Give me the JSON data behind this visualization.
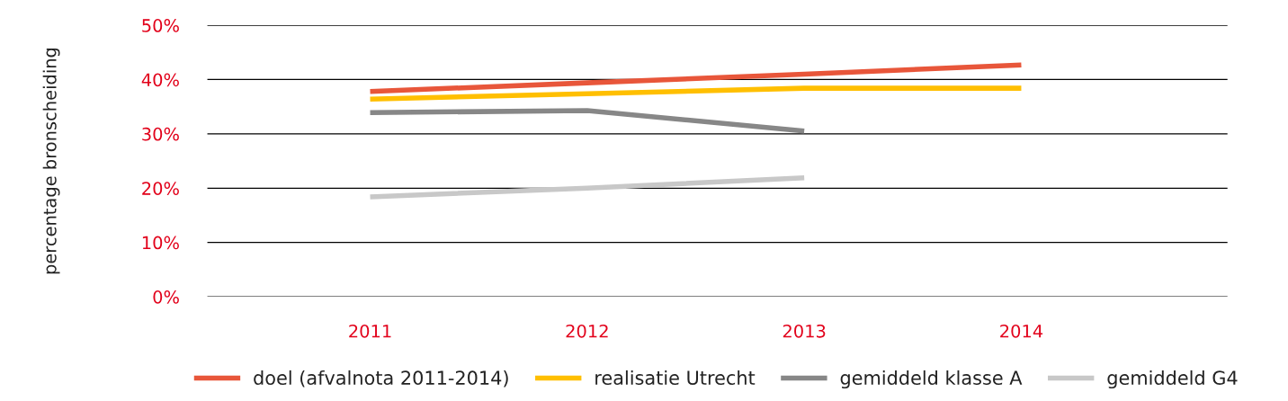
{
  "chart_data": {
    "type": "line",
    "ylabel": "percentage bronscheiding",
    "categories": [
      "2011",
      "2012",
      "2013",
      "2014"
    ],
    "series": [
      {
        "name": "doel (afvalnota 2011-2014)",
        "color": "#e8563a",
        "values": [
          37.8,
          39.4,
          41.0,
          42.7
        ]
      },
      {
        "name": "realisatie Utrecht",
        "color": "#ffbf00",
        "values": [
          36.4,
          37.4,
          38.4,
          38.4
        ]
      },
      {
        "name": "gemiddeld klasse A",
        "color": "#878787",
        "values": [
          33.9,
          34.3,
          30.5,
          null
        ]
      },
      {
        "name": "gemiddeld G4",
        "color": "#c8c8c8",
        "values": [
          18.4,
          20.0,
          21.9,
          null
        ]
      }
    ],
    "ylim": [
      0,
      50
    ],
    "yticks": [
      {
        "value": 0,
        "label": "0%"
      },
      {
        "value": 10,
        "label": "10%"
      },
      {
        "value": 20,
        "label": "20%"
      },
      {
        "value": 30,
        "label": "30%"
      },
      {
        "value": 40,
        "label": "40%"
      },
      {
        "value": 50,
        "label": "50%"
      }
    ],
    "grid": "y",
    "legend": "bottom",
    "marker": "none",
    "line_style": "solid"
  }
}
